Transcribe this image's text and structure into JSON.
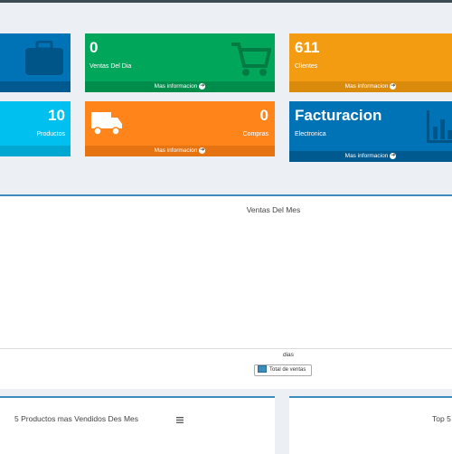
{
  "boxes": [
    {
      "id": "box1",
      "value": "",
      "label": "",
      "more": "",
      "color": "#0073b7",
      "icon": "briefcase-icon"
    },
    {
      "id": "box2",
      "value": "0",
      "label": "Ventas Del Dia",
      "more": "Mas informacion",
      "color": "#00a65a",
      "icon": "shopping-cart-icon"
    },
    {
      "id": "box3",
      "value": "611",
      "label": "Clientes",
      "more": "Mas informacion",
      "color": "#f39c12",
      "icon": "users-icon"
    },
    {
      "id": "box4",
      "value": "10",
      "label": "Productos",
      "more": "",
      "color": "#00c0ef",
      "icon": "box-icon"
    },
    {
      "id": "box5",
      "value": "0",
      "label": "Compras",
      "more": "Mas informacion",
      "color": "#ff851b",
      "icon": "truck-icon"
    },
    {
      "id": "box6",
      "value": "Facturacion",
      "label": "Electronica",
      "more": "Mas informacion",
      "color": "#0073b7",
      "icon": "bar-chart-icon"
    }
  ],
  "chart": {
    "title": "Ventas Del Mes",
    "xlabel": "dias",
    "legend": "Total de ventas"
  },
  "chart_data": {
    "type": "bar",
    "title": "Ventas Del Mes",
    "xlabel": "dias",
    "ylabel": "",
    "series": [
      {
        "name": "Total de ventas",
        "values": []
      }
    ],
    "categories": []
  },
  "panels": {
    "top_products_title": "5 Productos mas Vendidos Des Mes",
    "right_title": "Top 5"
  },
  "colors": {
    "accent": "#3c8dbc"
  }
}
